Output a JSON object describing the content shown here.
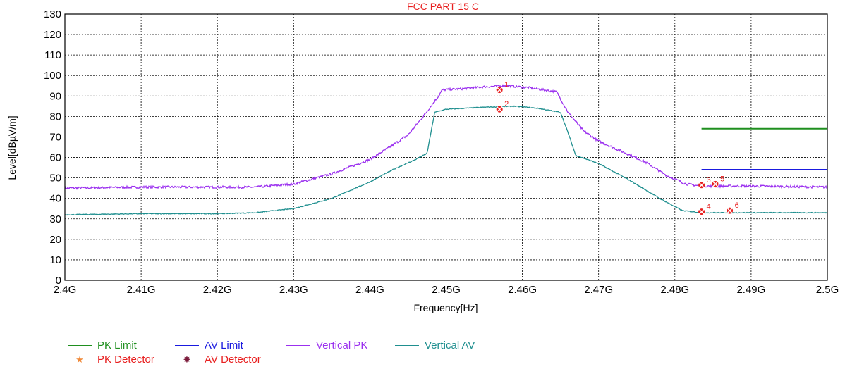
{
  "colors": {
    "pk_limit": "#1f8f1f",
    "av_limit": "#1a1adf",
    "vertical_pk": "#9b30ef",
    "vertical_av": "#1f8f8f",
    "marker": "#e82020",
    "legend_text": "#e82020",
    "pk_detector": "#f08a3a",
    "av_detector": "#7a1a3a"
  },
  "chart_data": {
    "type": "line",
    "title": "FCC PART 15 C",
    "xlabel": "Frequency[Hz]",
    "ylabel": "Level[dBµV/m]",
    "xlim": [
      2.4,
      2.5
    ],
    "ylim": [
      0,
      130
    ],
    "x_ticks": [
      2.4,
      2.41,
      2.42,
      2.43,
      2.44,
      2.45,
      2.46,
      2.47,
      2.48,
      2.49,
      2.5
    ],
    "x_tick_labels": [
      "2.4G",
      "2.41G",
      "2.42G",
      "2.43G",
      "2.44G",
      "2.45G",
      "2.46G",
      "2.47G",
      "2.48G",
      "2.49G",
      "2.5G"
    ],
    "y_ticks": [
      0,
      10,
      20,
      30,
      40,
      50,
      60,
      70,
      80,
      90,
      100,
      110,
      120,
      130
    ],
    "y_tick_labels": [
      "0",
      "10",
      "20",
      "30",
      "40",
      "50",
      "60",
      "70",
      "80",
      "90",
      "100",
      "110",
      "120",
      "130"
    ],
    "grid": true,
    "legend_position": "bottom-left",
    "series": [
      {
        "name": "PK Limit",
        "color_key": "pk_limit",
        "x": [
          2.4835,
          2.5
        ],
        "y": [
          74,
          74
        ]
      },
      {
        "name": "AV Limit",
        "color_key": "av_limit",
        "x": [
          2.4835,
          2.5
        ],
        "y": [
          54,
          54
        ]
      },
      {
        "name": "Vertical PK",
        "color_key": "vertical_pk",
        "x": [
          2.4,
          2.41,
          2.42,
          2.425,
          2.43,
          2.435,
          2.44,
          2.443,
          2.445,
          2.447,
          2.449,
          2.4495,
          2.452,
          2.455,
          2.458,
          2.461,
          2.4645,
          2.466,
          2.468,
          2.47,
          2.473,
          2.476,
          2.479,
          2.4815,
          2.4835,
          2.49,
          2.5
        ],
        "y": [
          45,
          45.5,
          45.5,
          45.5,
          47,
          52,
          59,
          66,
          71,
          80,
          90,
          93,
          93.5,
          94.5,
          95,
          94,
          92,
          82,
          73,
          68,
          63,
          58,
          51,
          47,
          46,
          46,
          45.5
        ]
      },
      {
        "name": "Vertical AV",
        "color_key": "vertical_av",
        "x": [
          2.4,
          2.41,
          2.42,
          2.425,
          2.43,
          2.435,
          2.44,
          2.443,
          2.446,
          2.4475,
          2.4485,
          2.45,
          2.455,
          2.459,
          2.462,
          2.465,
          2.466,
          2.467,
          2.47,
          2.474,
          2.478,
          2.481,
          2.4835,
          2.49,
          2.5
        ],
        "y": [
          32,
          32.5,
          32.5,
          33,
          35,
          40,
          48,
          54,
          59,
          62,
          82,
          83.5,
          84.5,
          85,
          84,
          82,
          72,
          61,
          57,
          49,
          40,
          34,
          33,
          33,
          33
        ]
      }
    ],
    "markers": [
      {
        "label": "1",
        "x": 2.457,
        "y": 93
      },
      {
        "label": "2",
        "x": 2.457,
        "y": 83.5
      },
      {
        "label": "3",
        "x": 2.4835,
        "y": 46.5
      },
      {
        "label": "4",
        "x": 2.4835,
        "y": 33.5
      },
      {
        "label": "5",
        "x": 2.4853,
        "y": 47
      },
      {
        "label": "6",
        "x": 2.4872,
        "y": 34
      }
    ]
  },
  "legend": {
    "pk_limit": "PK Limit",
    "av_limit": "AV Limit",
    "vertical_pk": "Vertical PK",
    "vertical_av": "Vertical AV",
    "pk_detector": "PK Detector",
    "av_detector": "AV Detector",
    "pk_detector_symbol": "★",
    "av_detector_symbol": "✸"
  }
}
